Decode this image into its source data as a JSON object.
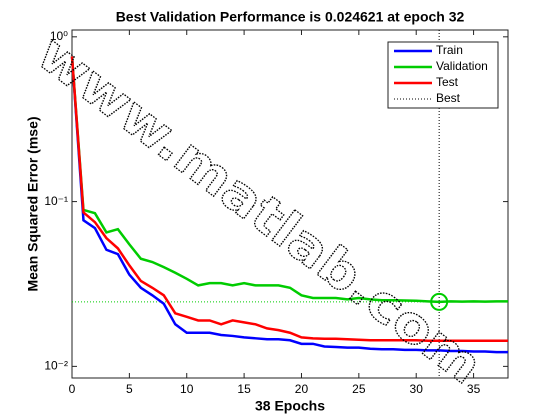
{
  "chart_data": {
    "type": "line",
    "title": "Best Validation Performance is 0.024621 at epoch 32",
    "x_label": "38 Epochs",
    "y_label": "Mean Squared Error  (mse)",
    "yscale": "log",
    "xlim": [
      0,
      38
    ],
    "ylim": [
      0.0085,
      1.1
    ],
    "xticks": [
      0,
      5,
      10,
      15,
      20,
      25,
      30,
      35
    ],
    "yticks": [
      {
        "value": 0.01,
        "label": "10⁻²"
      },
      {
        "value": 0.1,
        "label": "10⁻¹"
      },
      {
        "value": 1,
        "label": "10⁰"
      }
    ],
    "x": [
      0,
      1,
      2,
      3,
      4,
      5,
      6,
      7,
      8,
      9,
      10,
      11,
      12,
      13,
      14,
      15,
      16,
      17,
      18,
      19,
      20,
      21,
      22,
      23,
      24,
      25,
      26,
      27,
      28,
      29,
      30,
      31,
      32,
      33,
      34,
      35,
      36,
      37,
      38
    ],
    "series": [
      {
        "name": "Train",
        "color": "#0000ff",
        "values": [
          0.76,
          0.077,
          0.069,
          0.051,
          0.048,
          0.036,
          0.03,
          0.027,
          0.024,
          0.018,
          0.016,
          0.016,
          0.016,
          0.0155,
          0.0153,
          0.015,
          0.0148,
          0.0146,
          0.0146,
          0.0144,
          0.0137,
          0.0137,
          0.0132,
          0.0131,
          0.013,
          0.013,
          0.0128,
          0.0127,
          0.0127,
          0.0126,
          0.0126,
          0.0125,
          0.0125,
          0.0124,
          0.0124,
          0.0123,
          0.0123,
          0.0122,
          0.0122
        ]
      },
      {
        "name": "Validation",
        "color": "#00cc00",
        "values": [
          0.76,
          0.089,
          0.085,
          0.065,
          0.068,
          0.055,
          0.045,
          0.043,
          0.04,
          0.037,
          0.034,
          0.031,
          0.032,
          0.032,
          0.031,
          0.032,
          0.031,
          0.031,
          0.031,
          0.03,
          0.027,
          0.026,
          0.026,
          0.026,
          0.0255,
          0.026,
          0.0255,
          0.0252,
          0.0252,
          0.0251,
          0.025,
          0.0248,
          0.024621,
          0.0248,
          0.0247,
          0.0248,
          0.0247,
          0.0248,
          0.0248
        ]
      },
      {
        "name": "Test",
        "color": "#ff0000",
        "values": [
          0.76,
          0.086,
          0.075,
          0.06,
          0.052,
          0.041,
          0.033,
          0.03,
          0.027,
          0.021,
          0.02,
          0.019,
          0.019,
          0.018,
          0.019,
          0.0185,
          0.018,
          0.017,
          0.0166,
          0.016,
          0.015,
          0.0148,
          0.0147,
          0.0147,
          0.0146,
          0.0145,
          0.0144,
          0.0144,
          0.0144,
          0.0144,
          0.0144,
          0.0143,
          0.0143,
          0.0143,
          0.0143,
          0.0143,
          0.0143,
          0.0143,
          0.0143
        ]
      }
    ],
    "best": {
      "name": "Best",
      "x": 32,
      "y": 0.024621,
      "color": "#000000"
    },
    "legend": "upper right",
    "watermark": "www.matlab.com"
  }
}
